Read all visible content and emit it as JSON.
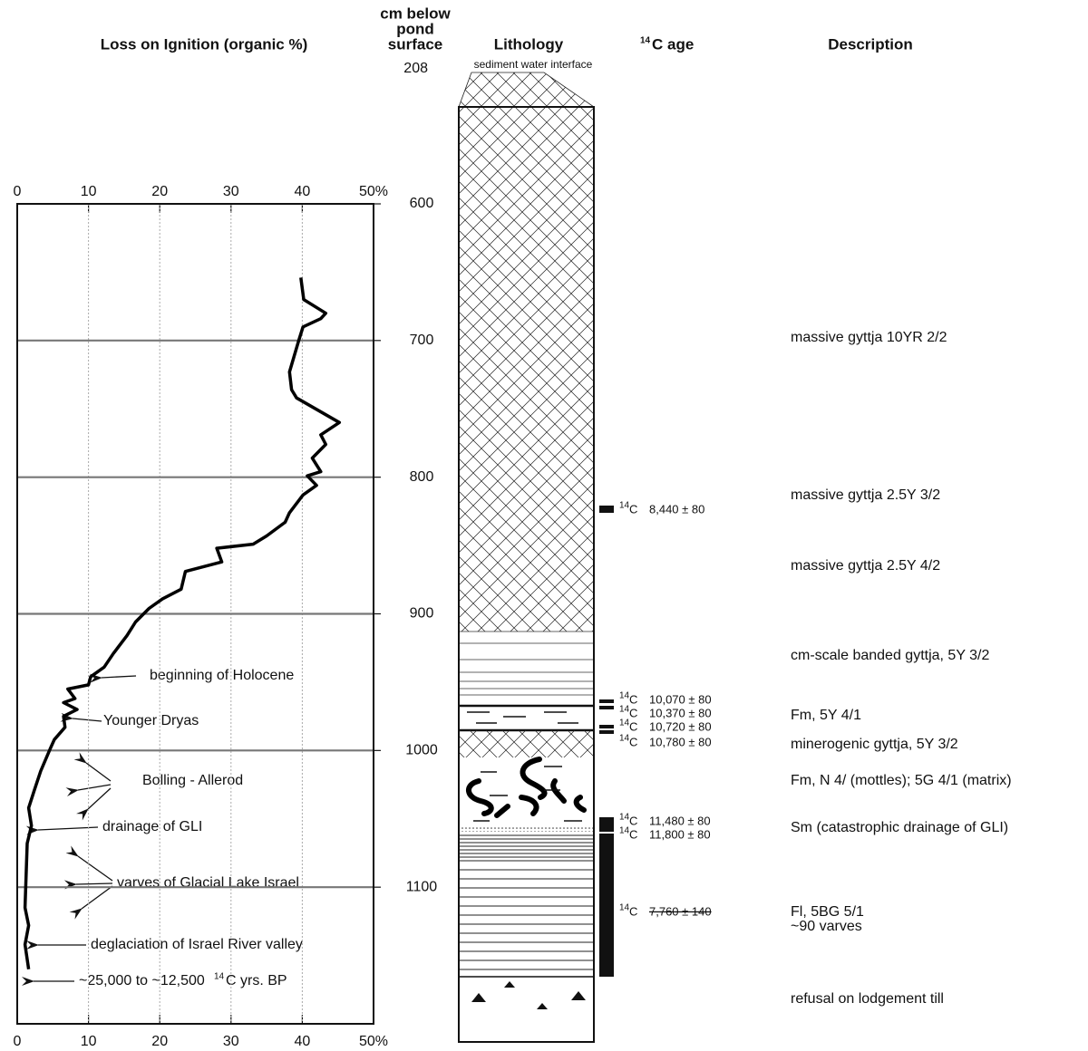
{
  "chart_data": {
    "type": "line",
    "title": "Loss on Ignition (organic %)",
    "depth_title": [
      "cm below",
      "pond",
      "surface"
    ],
    "surface_depth": 208,
    "surface_label": "sediment water interface",
    "xlim": [
      0,
      50
    ],
    "xticks": [
      0,
      10,
      20,
      30,
      40,
      {
        "value": 50,
        "label": "50%"
      }
    ],
    "ylim": [
      600,
      1200
    ],
    "yticks": [
      600,
      700,
      800,
      900,
      1000,
      1100
    ],
    "x_grid": true,
    "y_grid": true,
    "color": "#000000",
    "depth": [
      654,
      670,
      680,
      684,
      690,
      700,
      723,
      736,
      742,
      760,
      769,
      776,
      786,
      796,
      799,
      806,
      813,
      826,
      833,
      843,
      849,
      852,
      862,
      869,
      882,
      889,
      896,
      906,
      916,
      929,
      939,
      946,
      952,
      955,
      962,
      965,
      970,
      975,
      983,
      992,
      999,
      1015,
      1029,
      1042,
      1055,
      1068,
      1115,
      1128,
      1142,
      1160
    ],
    "loi": [
      39.8,
      40.2,
      43.3,
      42.6,
      40.1,
      39.5,
      38.2,
      38.5,
      39.2,
      45.2,
      42.6,
      43.3,
      41.4,
      42.6,
      40.7,
      42.0,
      40.1,
      38.2,
      37.6,
      35.0,
      33.1,
      28.0,
      28.7,
      23.6,
      23.0,
      20.4,
      18.5,
      16.6,
      15.4,
      13.5,
      12.2,
      10.3,
      10.0,
      7.1,
      8.1,
      6.5,
      8.4,
      6.5,
      6.7,
      5.2,
      4.6,
      3.3,
      2.4,
      1.6,
      2.0,
      1.4,
      1.1,
      1.6,
      1.1,
      1.6
    ],
    "annotations": [
      {
        "text": "beginning of Holocene"
      },
      {
        "text": "Younger Dryas"
      },
      {
        "text": "Bolling - Allerod"
      },
      {
        "text": "drainage of GLI"
      },
      {
        "text": "varves of Glacial Lake Israel"
      },
      {
        "text": "deglaciation of Israel River valley"
      },
      {
        "parts": [
          "~25,000 to ~12,500",
          "14",
          "C yrs. BP"
        ]
      }
    ],
    "lithology_title": "Lithology",
    "ages": {
      "title_sup": "14",
      "title": "C age",
      "prefix_sup": "14",
      "prefix": "C",
      "items": [
        {
          "age": "8,440 ± 80"
        },
        {
          "age": "10,070 ± 80"
        },
        {
          "age": "10,370 ± 80"
        },
        {
          "age": "10,720 ± 80"
        },
        {
          "age": "10,780 ± 80"
        },
        {
          "age": "11,480 ± 80"
        },
        {
          "age": "11,800 ± 80"
        },
        {
          "age": "7,760 ± 140",
          "struck": true
        }
      ]
    },
    "description": {
      "title": "Description",
      "items": [
        "massive gyttja 10YR 2/2",
        "massive gyttja 2.5Y 3/2",
        "massive gyttja 2.5Y 4/2",
        "cm-scale banded gyttja, 5Y 3/2",
        "Fm, 5Y 4/1",
        "minerogenic gyttja, 5Y 3/2",
        "Fm, N 4/  (mottles); 5G 4/1 (matrix)",
        "Sm (catastrophic drainage of GLI)",
        "Fl, 5BG 5/1",
        "~90 varves",
        "refusal on lodgement till"
      ]
    }
  }
}
